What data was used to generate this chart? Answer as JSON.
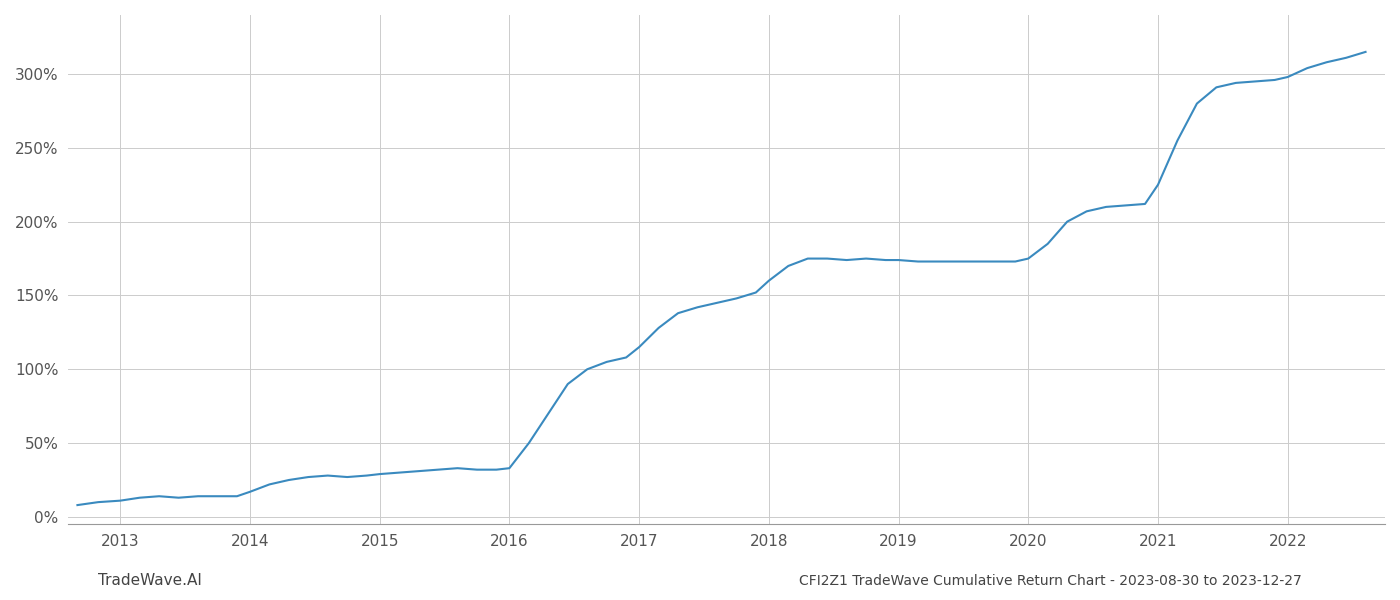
{
  "title": "CFI2Z1 TradeWave Cumulative Return Chart - 2023-08-30 to 2023-12-27",
  "watermark": "TradeWave.AI",
  "line_color": "#3a8abf",
  "background_color": "#ffffff",
  "grid_color": "#cccccc",
  "x_years": [
    2013,
    2014,
    2015,
    2016,
    2017,
    2018,
    2019,
    2020,
    2021,
    2022
  ],
  "x_data": [
    2012.67,
    2012.83,
    2013.0,
    2013.15,
    2013.3,
    2013.45,
    2013.6,
    2013.75,
    2013.9,
    2014.0,
    2014.15,
    2014.3,
    2014.45,
    2014.6,
    2014.75,
    2014.9,
    2015.0,
    2015.15,
    2015.3,
    2015.45,
    2015.6,
    2015.75,
    2015.9,
    2016.0,
    2016.15,
    2016.3,
    2016.45,
    2016.6,
    2016.75,
    2016.9,
    2017.0,
    2017.15,
    2017.3,
    2017.45,
    2017.6,
    2017.75,
    2017.9,
    2018.0,
    2018.15,
    2018.3,
    2018.45,
    2018.6,
    2018.75,
    2018.9,
    2019.0,
    2019.15,
    2019.3,
    2019.45,
    2019.6,
    2019.75,
    2019.9,
    2020.0,
    2020.15,
    2020.3,
    2020.45,
    2020.6,
    2020.75,
    2020.9,
    2021.0,
    2021.15,
    2021.3,
    2021.45,
    2021.6,
    2021.75,
    2021.9,
    2022.0,
    2022.15,
    2022.3,
    2022.45,
    2022.6
  ],
  "y_data": [
    8,
    10,
    11,
    13,
    14,
    13,
    14,
    14,
    14,
    17,
    22,
    25,
    27,
    28,
    27,
    28,
    29,
    30,
    31,
    32,
    33,
    32,
    32,
    33,
    50,
    70,
    90,
    100,
    105,
    108,
    115,
    128,
    138,
    142,
    145,
    148,
    152,
    160,
    170,
    175,
    175,
    174,
    175,
    174,
    174,
    173,
    173,
    173,
    173,
    173,
    173,
    175,
    185,
    200,
    207,
    210,
    211,
    212,
    225,
    255,
    280,
    291,
    294,
    295,
    296,
    298,
    304,
    308,
    311,
    315
  ],
  "y_ticks": [
    0,
    50,
    100,
    150,
    200,
    250,
    300
  ],
  "y_tick_labels": [
    "0%",
    "50%",
    "100%",
    "150%",
    "200%",
    "250%",
    "300%"
  ],
  "ylim": [
    -5,
    340
  ],
  "xlim": [
    2012.6,
    2022.75
  ],
  "title_fontsize": 10,
  "watermark_fontsize": 11,
  "tick_label_fontsize": 11,
  "line_width": 1.5
}
